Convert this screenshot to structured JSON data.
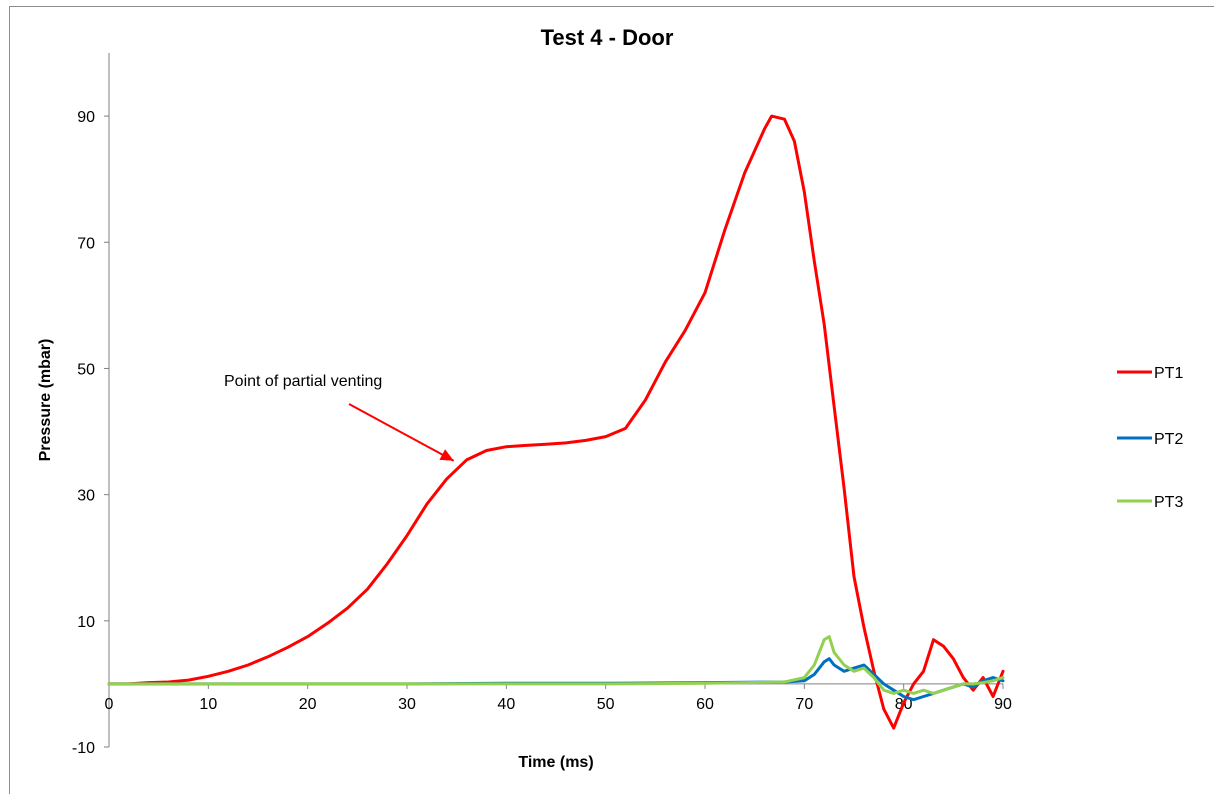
{
  "chart_data": {
    "type": "line",
    "title": "Test 4 - Door",
    "xlabel": "Time (ms)",
    "ylabel": "Pressure (mbar)",
    "xlim": [
      0,
      90
    ],
    "ylim": [
      -10,
      100
    ],
    "xticks": [
      0,
      10,
      20,
      30,
      40,
      50,
      60,
      70,
      80,
      90
    ],
    "yticks": [
      -10,
      10,
      30,
      50,
      70,
      90
    ],
    "grid": false,
    "legend_position": "right",
    "annotation": {
      "text": "Point of partial venting",
      "arrow_to": [
        34.5,
        36
      ]
    },
    "series": [
      {
        "name": "PT1",
        "color": "#ff0000",
        "points": [
          [
            0,
            0
          ],
          [
            2,
            0
          ],
          [
            4,
            0.2
          ],
          [
            6,
            0.3
          ],
          [
            8,
            0.6
          ],
          [
            10,
            1.2
          ],
          [
            12,
            2
          ],
          [
            14,
            3
          ],
          [
            16,
            4.3
          ],
          [
            18,
            5.8
          ],
          [
            20,
            7.5
          ],
          [
            22,
            9.6
          ],
          [
            24,
            12
          ],
          [
            26,
            15
          ],
          [
            28,
            19
          ],
          [
            30,
            23.5
          ],
          [
            32,
            28.5
          ],
          [
            34,
            32.5
          ],
          [
            36,
            35.5
          ],
          [
            38,
            37
          ],
          [
            40,
            37.6
          ],
          [
            42,
            37.8
          ],
          [
            44,
            38
          ],
          [
            46,
            38.2
          ],
          [
            48,
            38.6
          ],
          [
            50,
            39.2
          ],
          [
            52,
            40.5
          ],
          [
            54,
            45
          ],
          [
            56,
            51
          ],
          [
            58,
            56
          ],
          [
            60,
            62
          ],
          [
            62,
            72
          ],
          [
            64,
            81
          ],
          [
            66,
            88
          ],
          [
            66.7,
            90
          ],
          [
            68,
            89.5
          ],
          [
            69,
            86
          ],
          [
            70,
            78
          ],
          [
            71,
            67
          ],
          [
            72,
            57
          ],
          [
            73,
            44
          ],
          [
            74,
            31
          ],
          [
            75,
            17
          ],
          [
            76,
            9
          ],
          [
            77,
            2
          ],
          [
            78,
            -4
          ],
          [
            79,
            -7
          ],
          [
            80,
            -3
          ],
          [
            81,
            0
          ],
          [
            82,
            2
          ],
          [
            83,
            7
          ],
          [
            84,
            6
          ],
          [
            85,
            4
          ],
          [
            86,
            1
          ],
          [
            87,
            -1
          ],
          [
            88,
            1
          ],
          [
            89,
            -2
          ],
          [
            90,
            2
          ]
        ]
      },
      {
        "name": "PT2",
        "color": "#0070c0",
        "points": [
          [
            0,
            0
          ],
          [
            10,
            0
          ],
          [
            20,
            0
          ],
          [
            30,
            0
          ],
          [
            40,
            0.1
          ],
          [
            50,
            0.1
          ],
          [
            60,
            0.2
          ],
          [
            68,
            0.3
          ],
          [
            70,
            0.5
          ],
          [
            71,
            1.5
          ],
          [
            72,
            3.5
          ],
          [
            72.5,
            4
          ],
          [
            73,
            3
          ],
          [
            74,
            2
          ],
          [
            75,
            2.5
          ],
          [
            76,
            3
          ],
          [
            77,
            1.5
          ],
          [
            78,
            0
          ],
          [
            79,
            -1
          ],
          [
            80,
            -2
          ],
          [
            81,
            -2.5
          ],
          [
            82,
            -2
          ],
          [
            83,
            -1.5
          ],
          [
            84,
            -1
          ],
          [
            85,
            -0.5
          ],
          [
            86,
            0
          ],
          [
            87,
            -0.5
          ],
          [
            88,
            0.5
          ],
          [
            89,
            1
          ],
          [
            90,
            0.5
          ]
        ]
      },
      {
        "name": "PT3",
        "color": "#92d050",
        "points": [
          [
            0,
            0
          ],
          [
            10,
            0
          ],
          [
            20,
            0
          ],
          [
            30,
            0
          ],
          [
            40,
            0
          ],
          [
            50,
            0
          ],
          [
            60,
            0.1
          ],
          [
            68,
            0.3
          ],
          [
            70,
            1
          ],
          [
            71,
            3
          ],
          [
            72,
            7
          ],
          [
            72.5,
            7.5
          ],
          [
            73,
            5
          ],
          [
            74,
            3
          ],
          [
            75,
            2
          ],
          [
            76,
            2.5
          ],
          [
            77,
            1
          ],
          [
            78,
            -1
          ],
          [
            79,
            -1.5
          ],
          [
            80,
            -1
          ],
          [
            81,
            -1.5
          ],
          [
            82,
            -1
          ],
          [
            83,
            -1.5
          ],
          [
            84,
            -1
          ],
          [
            85,
            -0.5
          ],
          [
            86,
            0
          ],
          [
            87,
            0
          ],
          [
            88,
            0.2
          ],
          [
            89,
            0.5
          ],
          [
            90,
            1
          ]
        ]
      }
    ]
  }
}
